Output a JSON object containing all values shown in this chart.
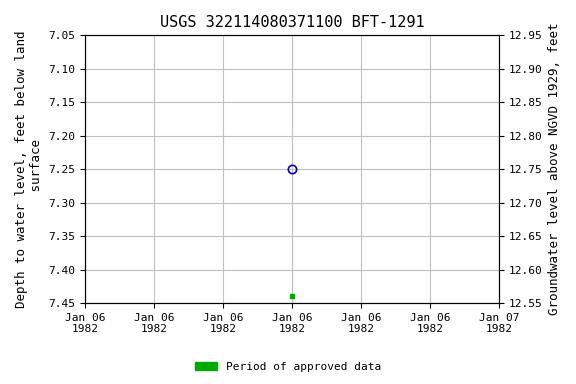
{
  "title": "USGS 322114080371100 BFT-1291",
  "ylabel_left": "Depth to water level, feet below land\n surface",
  "ylabel_right": "Groundwater level above NGVD 1929, feet",
  "ylim_left": [
    7.45,
    7.05
  ],
  "ylim_right": [
    12.55,
    12.95
  ],
  "yticks_left": [
    7.05,
    7.1,
    7.15,
    7.2,
    7.25,
    7.3,
    7.35,
    7.4,
    7.45
  ],
  "yticks_right": [
    12.95,
    12.9,
    12.85,
    12.8,
    12.75,
    12.7,
    12.65,
    12.6,
    12.55
  ],
  "xlim": [
    0.0,
    6.0
  ],
  "xtick_positions": [
    0,
    1,
    2,
    3,
    4,
    5,
    6
  ],
  "xtick_labels": [
    "Jan 06\n1982",
    "Jan 06\n1982",
    "Jan 06\n1982",
    "Jan 06\n1982",
    "Jan 06\n1982",
    "Jan 06\n1982",
    "Jan 07\n1982"
  ],
  "data_point_x": 3.0,
  "data_point_y": 7.25,
  "green_point_x": 3.0,
  "green_point_y": 7.44,
  "open_circle_color": "#0000cc",
  "green_square_color": "#00aa00",
  "grid_color": "#c0c0c0",
  "background_color": "#ffffff",
  "legend_label": "Period of approved data",
  "title_fontsize": 11,
  "label_fontsize": 9,
  "tick_fontsize": 8
}
